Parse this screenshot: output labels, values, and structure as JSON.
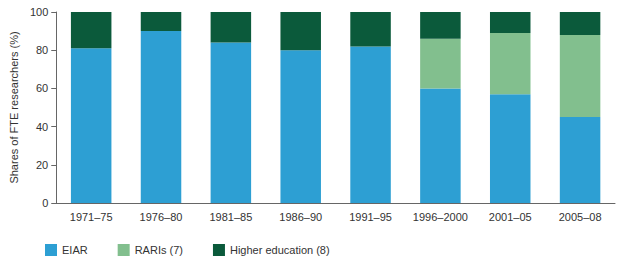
{
  "chart_data": {
    "type": "bar",
    "stacked": true,
    "grid": false,
    "legend": "bottom",
    "ylabel": "Shares of FTE researchers (%)",
    "categories": [
      "1971–75",
      "1976–80",
      "1981–85",
      "1986–90",
      "1991–95",
      "1996–2000",
      "2001–05",
      "2005–08"
    ],
    "ylim": [
      0,
      100
    ],
    "yticks": [
      0,
      20,
      40,
      60,
      80,
      100
    ],
    "series": [
      {
        "name": "EIAR",
        "color": "#2d9fd3",
        "values": [
          81,
          90,
          84,
          80,
          82,
          60,
          57,
          45
        ]
      },
      {
        "name": "RARIs (7)",
        "color": "#82bf8e",
        "values": [
          0,
          0,
          0,
          0,
          0,
          26,
          32,
          43
        ]
      },
      {
        "name": "Higher education (8)",
        "color": "#0b5a3b",
        "values": [
          19,
          10,
          16,
          20,
          18,
          14,
          11,
          12
        ]
      }
    ]
  }
}
